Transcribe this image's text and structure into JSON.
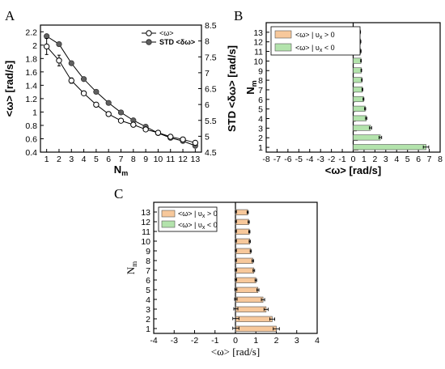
{
  "colors": {
    "positive": "#f7c89b",
    "negative": "#b3e3ac",
    "series_a": "#ffffff",
    "series_b": "#606060"
  },
  "panels": {
    "a": "A",
    "b": "B",
    "c": "C"
  },
  "chart_data": [
    {
      "panel": "A",
      "type": "line",
      "x": [
        1,
        2,
        3,
        4,
        5,
        6,
        7,
        8,
        9,
        10,
        11,
        12,
        13
      ],
      "xlabel": "N_m",
      "ylabel_left": "<ω> [rad/s]",
      "ylabel_right": "STD <δω> [rad/s]",
      "xlim": [
        0.5,
        13.5
      ],
      "ylim_left": [
        0.4,
        2.3
      ],
      "ylim_right": [
        4.5,
        8.5
      ],
      "xticks": [
        "1",
        "2",
        "3",
        "4",
        "5",
        "6",
        "7",
        "8",
        "9",
        "10",
        "11",
        "12",
        "13"
      ],
      "yticks_left": [
        "0.4",
        "0.6",
        "0.8",
        "1",
        "1.2",
        "1.4",
        "1.6",
        "1.8",
        "2",
        "2.2"
      ],
      "yticks_right": [
        "4.5",
        "5",
        "5.5",
        "6",
        "6.5",
        "7",
        "7.5",
        "8",
        "8.5"
      ],
      "legend_position": "top-right",
      "series": [
        {
          "name": "<ω>",
          "axis": "left",
          "marker": "open-circle",
          "values": [
            1.98,
            1.77,
            1.47,
            1.28,
            1.11,
            0.97,
            0.87,
            0.81,
            0.74,
            0.69,
            0.63,
            0.59,
            0.54
          ],
          "errors": [
            0.12,
            0.08,
            0.04,
            0.03,
            0.02,
            0.02,
            0.02,
            0.02,
            0.02,
            0.02,
            0.02,
            0.02,
            0.02
          ]
        },
        {
          "name": "STD <δω>",
          "axis": "right",
          "marker": "filled-circle",
          "values": [
            8.15,
            7.9,
            7.3,
            6.8,
            6.4,
            6.05,
            5.75,
            5.5,
            5.3,
            5.1,
            4.95,
            4.85,
            4.7
          ]
        }
      ]
    },
    {
      "panel": "B",
      "type": "bar",
      "orientation": "horizontal",
      "categories": [
        "1",
        "2",
        "3",
        "4",
        "5",
        "6",
        "7",
        "8",
        "9",
        "10",
        "11",
        "12",
        "13"
      ],
      "xlabel": "<ω> [rad/s]",
      "ylabel": "N_m",
      "xlim": [
        -8,
        8
      ],
      "xticks": [
        "-8",
        "-7",
        "-6",
        "-5",
        "-4",
        "-3",
        "-2",
        "-1",
        "0",
        "1",
        "2",
        "3",
        "4",
        "5",
        "6",
        "7",
        "8"
      ],
      "legend_position": "top-left",
      "legend": [
        "<ω> | υx > 0",
        "<ω> | υx < 0"
      ],
      "series": [
        {
          "name": "<ω> | υx > 0",
          "values": [
            0.45,
            0.4,
            0.3,
            0.2,
            0.15,
            0.12,
            0.1,
            0.08,
            0.06,
            0.05,
            0.05,
            0.04,
            0.04
          ],
          "errors": [
            0.15,
            0.1,
            0.08,
            0.05,
            0.05,
            0.04,
            0.03,
            0.03,
            0.03,
            0.02,
            0.02,
            0.02,
            0.02
          ]
        },
        {
          "name": "<ω> | υx < 0",
          "values": [
            6.7,
            2.5,
            1.6,
            1.2,
            1.1,
            0.95,
            0.85,
            0.8,
            0.75,
            0.72,
            0.7,
            0.68,
            0.65
          ],
          "errors": [
            0.25,
            0.12,
            0.1,
            0.06,
            0.05,
            0.04,
            0.04,
            0.03,
            0.03,
            0.03,
            0.03,
            0.03,
            0.03
          ]
        }
      ]
    },
    {
      "panel": "C",
      "type": "bar",
      "orientation": "horizontal",
      "categories": [
        "1",
        "2",
        "3",
        "4",
        "5",
        "6",
        "7",
        "8",
        "9",
        "10",
        "11",
        "12",
        "13"
      ],
      "xlabel": "<ω> [rad/s]",
      "ylabel": "N_m",
      "xlim": [
        -4,
        4
      ],
      "xticks": [
        "-4",
        "-3",
        "-2",
        "-1",
        "0",
        "1",
        "2",
        "3",
        "4"
      ],
      "legend_position": "top-left",
      "legend": [
        "<ω> | υx > 0",
        "<ω> | υx < 0"
      ],
      "series": [
        {
          "name": "<ω> | υx > 0",
          "values": [
            2.0,
            1.8,
            1.5,
            1.35,
            1.1,
            1.0,
            0.9,
            0.85,
            0.75,
            0.7,
            0.68,
            0.65,
            0.6
          ],
          "errors": [
            0.15,
            0.12,
            0.1,
            0.08,
            0.05,
            0.04,
            0.04,
            0.04,
            0.03,
            0.03,
            0.03,
            0.03,
            0.03
          ]
        },
        {
          "name": "<ω> | υx < 0",
          "values": [
            0.02,
            0.02,
            0.02,
            0.02,
            0.02,
            0.02,
            0.02,
            0.02,
            0.02,
            0.02,
            0.02,
            0.02,
            0.02
          ],
          "errors": [
            0.15,
            0.15,
            0.1,
            0.06,
            0.05,
            0.04,
            0.04,
            0.03,
            0.03,
            0.03,
            0.03,
            0.03,
            0.03
          ]
        }
      ]
    }
  ]
}
